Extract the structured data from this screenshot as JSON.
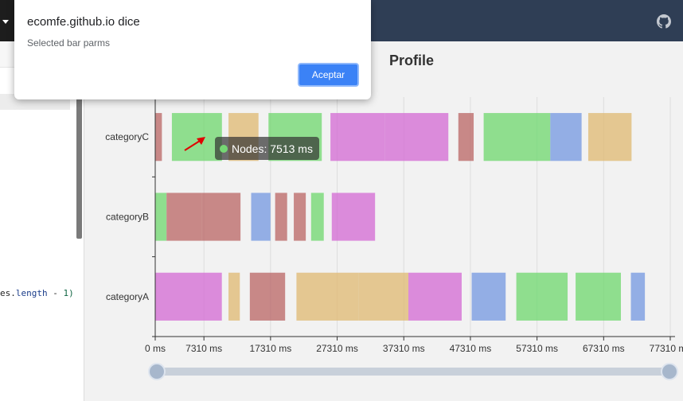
{
  "dialog": {
    "title": "ecomfe.github.io dice",
    "message": "Selected bar parms",
    "ok_label": "Aceptar"
  },
  "code": {
    "text_obj": "es.",
    "text_prop": "length",
    "text_op": " - ",
    "text_num": "1)"
  },
  "icons": {
    "github": "github-icon",
    "caret": "caret-down-icon"
  },
  "tooltip": {
    "name": "Nodes",
    "text": "Nodes: 7513 ms",
    "color": "#75d874"
  },
  "chart_data": {
    "type": "bar",
    "title": "Profile",
    "xlabel": "",
    "ylabel": "",
    "xlim": [
      0,
      77310
    ],
    "xticks": [
      0,
      7310,
      17310,
      27310,
      37310,
      47310,
      57310,
      67310,
      77310
    ],
    "xtick_labels": [
      "0 ms",
      "7310 ms",
      "17310 ms",
      "27310 ms",
      "37310 ms",
      "47310 ms",
      "57310 ms",
      "67310 ms",
      "77310 ms"
    ],
    "categories": [
      "categoryA",
      "categoryB",
      "categoryC"
    ],
    "colors": {
      "Nodes": "#75d874",
      "Links": "#7b9ce1",
      "Traversing": "#d571d5",
      "Reading": "#bd6d6c",
      "Rendering": "#e0bc78"
    },
    "segments": [
      {
        "category": "categoryC",
        "name": "Reading",
        "start": 0,
        "end": 1000
      },
      {
        "category": "categoryC",
        "name": "Nodes",
        "start": 2500,
        "end": 10013
      },
      {
        "category": "categoryC",
        "name": "Rendering",
        "start": 11000,
        "end": 15500
      },
      {
        "category": "categoryC",
        "name": "Nodes",
        "start": 17000,
        "end": 25000
      },
      {
        "category": "categoryC",
        "name": "Traversing",
        "start": 26300,
        "end": 34500
      },
      {
        "category": "categoryC",
        "name": "Traversing",
        "start": 34500,
        "end": 44000
      },
      {
        "category": "categoryC",
        "name": "Reading",
        "start": 45500,
        "end": 47800
      },
      {
        "category": "categoryC",
        "name": "Nodes",
        "start": 49300,
        "end": 59300
      },
      {
        "category": "categoryC",
        "name": "Links",
        "start": 59300,
        "end": 64000
      },
      {
        "category": "categoryC",
        "name": "Rendering",
        "start": 65000,
        "end": 71500
      },
      {
        "category": "categoryB",
        "name": "Nodes",
        "start": 0,
        "end": 1700
      },
      {
        "category": "categoryB",
        "name": "Reading",
        "start": 1700,
        "end": 7000
      },
      {
        "category": "categoryB",
        "name": "Reading",
        "start": 7000,
        "end": 12800
      },
      {
        "category": "categoryB",
        "name": "Links",
        "start": 14400,
        "end": 17300
      },
      {
        "category": "categoryB",
        "name": "Reading",
        "start": 18000,
        "end": 19800
      },
      {
        "category": "categoryB",
        "name": "Reading",
        "start": 20800,
        "end": 22600
      },
      {
        "category": "categoryB",
        "name": "Nodes",
        "start": 23400,
        "end": 25300
      },
      {
        "category": "categoryB",
        "name": "Traversing",
        "start": 26500,
        "end": 33000
      },
      {
        "category": "categoryA",
        "name": "Traversing",
        "start": 0,
        "end": 10000
      },
      {
        "category": "categoryA",
        "name": "Rendering",
        "start": 11000,
        "end": 12700
      },
      {
        "category": "categoryA",
        "name": "Reading",
        "start": 14200,
        "end": 19500
      },
      {
        "category": "categoryA",
        "name": "Rendering",
        "start": 21200,
        "end": 30500
      },
      {
        "category": "categoryA",
        "name": "Rendering",
        "start": 30500,
        "end": 38000
      },
      {
        "category": "categoryA",
        "name": "Traversing",
        "start": 38000,
        "end": 46000
      },
      {
        "category": "categoryA",
        "name": "Links",
        "start": 47500,
        "end": 52600
      },
      {
        "category": "categoryA",
        "name": "Nodes",
        "start": 54200,
        "end": 61900
      },
      {
        "category": "categoryA",
        "name": "Nodes",
        "start": 63100,
        "end": 69900
      },
      {
        "category": "categoryA",
        "name": "Links",
        "start": 71400,
        "end": 73500
      }
    ],
    "data_zoom": {
      "start_percent": 0,
      "end_percent": 100
    }
  }
}
